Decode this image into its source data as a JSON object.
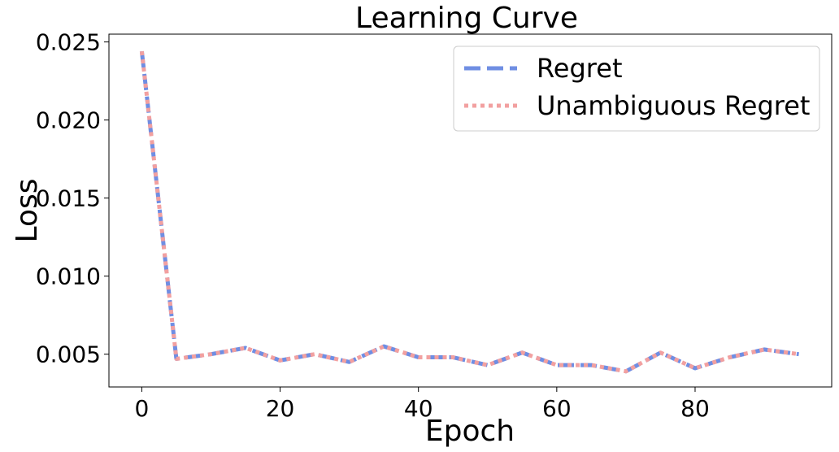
{
  "chart_data": {
    "type": "line",
    "title": "Learning Curve",
    "xlabel": "Epoch",
    "ylabel": "Loss",
    "xlim": [
      -4.75,
      99.75
    ],
    "ylim": [
      0.0029,
      0.0255
    ],
    "xticks": [
      0,
      20,
      40,
      60,
      80
    ],
    "yticks": [
      0.005,
      0.01,
      0.015,
      0.02,
      0.025
    ],
    "ytick_labels": [
      "0.005",
      "0.010",
      "0.015",
      "0.020",
      "0.025"
    ],
    "x": [
      0,
      5,
      10,
      15,
      20,
      25,
      30,
      35,
      40,
      45,
      50,
      55,
      60,
      65,
      70,
      75,
      80,
      85,
      90,
      95
    ],
    "series": [
      {
        "name": "Regret",
        "values": [
          0.0244,
          0.0047,
          0.005,
          0.0054,
          0.0046,
          0.005,
          0.0045,
          0.0055,
          0.0048,
          0.0048,
          0.0043,
          0.0051,
          0.0043,
          0.0043,
          0.0039,
          0.0051,
          0.0041,
          0.0048,
          0.0053,
          0.005
        ],
        "color": "#6f8ee3",
        "style": "dashed"
      },
      {
        "name": "Unambiguous Regret",
        "values": [
          0.0244,
          0.0047,
          0.005,
          0.0054,
          0.0046,
          0.005,
          0.0045,
          0.0055,
          0.0048,
          0.0048,
          0.0043,
          0.0051,
          0.0043,
          0.0043,
          0.0039,
          0.0051,
          0.0041,
          0.0048,
          0.0053,
          0.005
        ],
        "color": "#f2a0a0",
        "style": "dotted"
      }
    ],
    "grid": false,
    "legend": "top-right"
  }
}
